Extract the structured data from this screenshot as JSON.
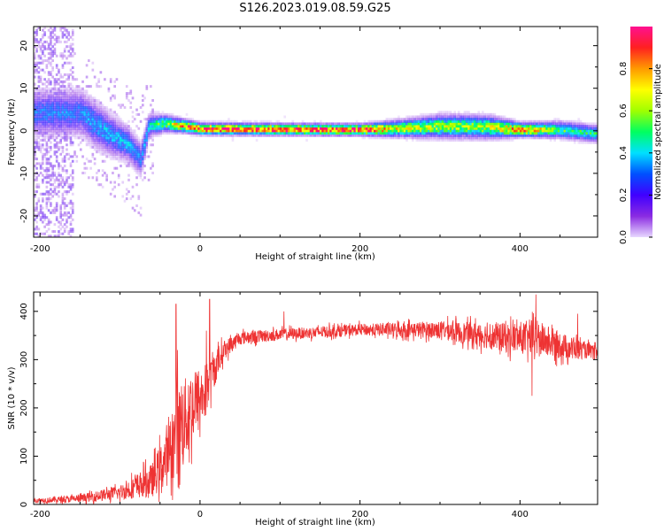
{
  "title": "S126.2023.019.08.59.G25",
  "chart_data": [
    {
      "type": "heatmap",
      "xlabel": "Height of straight line (km)",
      "ylabel": "Frequency (Hz)",
      "xlim": [
        -208,
        497
      ],
      "ylim": [
        -25,
        24.5
      ],
      "xticks": [
        -200,
        0,
        200,
        400
      ],
      "yticks": [
        -20,
        -10,
        0,
        10,
        20
      ],
      "grid": false,
      "colorbar": {
        "label": "Normalized spectral amplitude",
        "range": [
          0,
          1
        ],
        "ticks": [
          0.0,
          0.2,
          0.4,
          0.6,
          0.8
        ],
        "colormap": [
          "#e8d8ff",
          "#8a2be2",
          "#4000ff",
          "#0050ff",
          "#00e0ff",
          "#00ff60",
          "#a0ff00",
          "#ffff00",
          "#ff9a00",
          "#ff2020",
          "#ff1090"
        ]
      },
      "ridge": [
        {
          "x": -150,
          "f": 4.0,
          "w": 4.0,
          "a": 0.3
        },
        {
          "x": -130,
          "f": 1.0,
          "w": 4.0,
          "a": 0.35
        },
        {
          "x": -110,
          "f": -1.5,
          "w": 3.5,
          "a": 0.35
        },
        {
          "x": -90,
          "f": -3.5,
          "w": 3.0,
          "a": 0.35
        },
        {
          "x": -75,
          "f": -7.0,
          "w": 3.0,
          "a": 0.3
        },
        {
          "x": -65,
          "f": 1.0,
          "w": 2.0,
          "a": 0.4
        },
        {
          "x": -45,
          "f": 1.5,
          "w": 1.5,
          "a": 0.55
        },
        {
          "x": -25,
          "f": 1.0,
          "w": 1.2,
          "a": 0.75
        },
        {
          "x": 0,
          "f": 0.2,
          "w": 1.0,
          "a": 0.9
        },
        {
          "x": 200,
          "f": 0.0,
          "w": 1.0,
          "a": 0.92
        },
        {
          "x": 250,
          "f": 0.3,
          "w": 1.5,
          "a": 0.65
        },
        {
          "x": 300,
          "f": 0.8,
          "w": 2.0,
          "a": 0.6
        },
        {
          "x": 360,
          "f": 0.6,
          "w": 2.0,
          "a": 0.6
        },
        {
          "x": 400,
          "f": 0.0,
          "w": 1.2,
          "a": 0.85
        },
        {
          "x": 450,
          "f": 0.0,
          "w": 1.5,
          "a": 0.5
        },
        {
          "x": 497,
          "f": -1.0,
          "w": 1.5,
          "a": 0.45
        }
      ]
    },
    {
      "type": "line",
      "xlabel": "Height of straight line (km)",
      "ylabel": "SNR (10 * v/v)",
      "xlim": [
        -208,
        497
      ],
      "ylim": [
        0,
        440
      ],
      "xticks": [
        -200,
        0,
        200,
        400
      ],
      "yticks": [
        0,
        100,
        200,
        300,
        400
      ],
      "grid": false,
      "series_color": "#ee3333",
      "trend": [
        {
          "x": -208,
          "y": 8,
          "noise": 5
        },
        {
          "x": -150,
          "y": 12,
          "noise": 8
        },
        {
          "x": -100,
          "y": 25,
          "noise": 15
        },
        {
          "x": -60,
          "y": 50,
          "noise": 35
        },
        {
          "x": -40,
          "y": 100,
          "noise": 60
        },
        {
          "x": -25,
          "y": 160,
          "noise": 90
        },
        {
          "x": -10,
          "y": 200,
          "noise": 80
        },
        {
          "x": 5,
          "y": 230,
          "noise": 60
        },
        {
          "x": 15,
          "y": 270,
          "noise": 40
        },
        {
          "x": 30,
          "y": 320,
          "noise": 20
        },
        {
          "x": 50,
          "y": 345,
          "noise": 14
        },
        {
          "x": 100,
          "y": 352,
          "noise": 12
        },
        {
          "x": 200,
          "y": 362,
          "noise": 12
        },
        {
          "x": 300,
          "y": 362,
          "noise": 18
        },
        {
          "x": 380,
          "y": 345,
          "noise": 30
        },
        {
          "x": 420,
          "y": 345,
          "noise": 38
        },
        {
          "x": 460,
          "y": 325,
          "noise": 25
        },
        {
          "x": 497,
          "y": 315,
          "noise": 12
        }
      ],
      "spikes": [
        {
          "x": -30,
          "y": 415
        },
        {
          "x": -28,
          "y": 320
        },
        {
          "x": 12,
          "y": 425
        },
        {
          "x": 8,
          "y": 360
        },
        {
          "x": 105,
          "y": 400
        },
        {
          "x": 420,
          "y": 435
        },
        {
          "x": 415,
          "y": 225
        },
        {
          "x": 472,
          "y": 395
        }
      ]
    }
  ]
}
